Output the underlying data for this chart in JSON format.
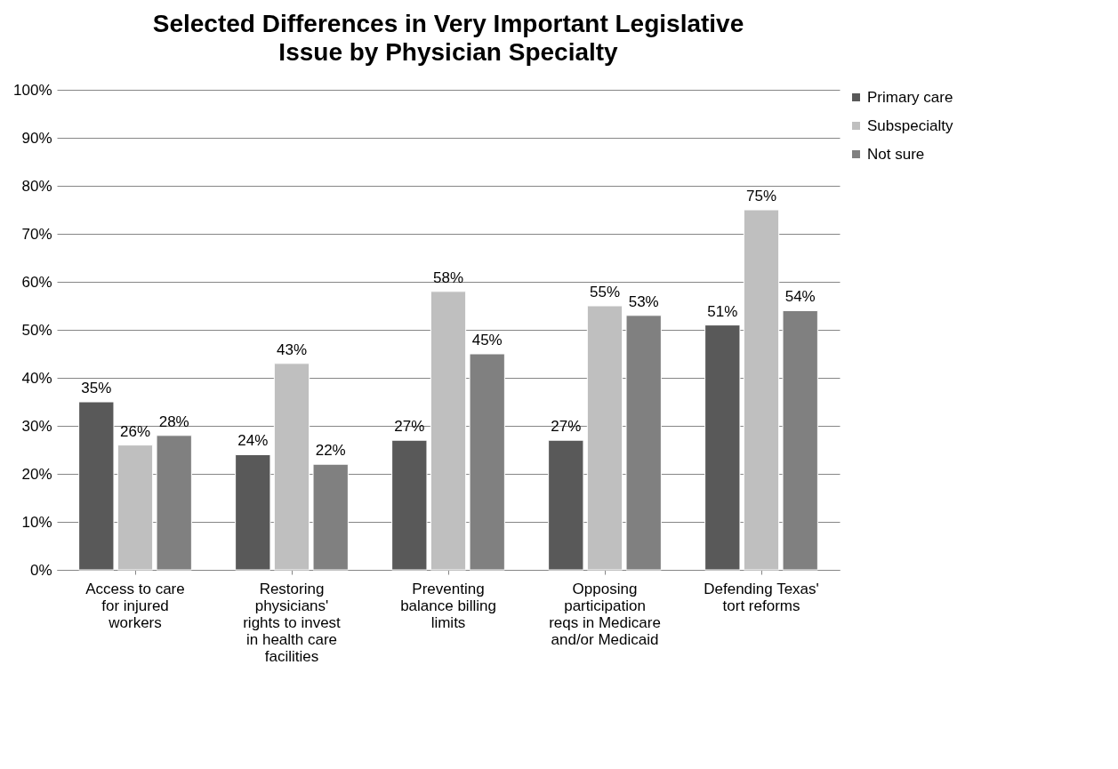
{
  "chart_data": {
    "type": "bar",
    "title": "Selected Differences in Very Important Legislative Issue by Physician Specialty",
    "categories": [
      "Access to care for injured workers",
      "Restoring physicians' rights to invest in health care facilities",
      "Preventing balance billing limits",
      "Opposing participation reqs in Medicare and/or Medicaid",
      "Defending Texas' tort reforms"
    ],
    "series": [
      {
        "name": "Primary care",
        "color": "#595959",
        "values": [
          35,
          24,
          27,
          27,
          51
        ],
        "value_labels": [
          "35%",
          "24%",
          "27%",
          "27%",
          "51%"
        ]
      },
      {
        "name": "Subspecialty",
        "color": "#bfbfbf",
        "values": [
          26,
          43,
          58,
          55,
          75
        ],
        "value_labels": [
          "26%",
          "43%",
          "58%",
          "55%",
          "75%"
        ]
      },
      {
        "name": "Not sure",
        "color": "#808080",
        "values": [
          28,
          22,
          45,
          53,
          54
        ],
        "value_labels": [
          "28%",
          "22%",
          "45%",
          "53%",
          "54%"
        ]
      }
    ],
    "ylim": [
      0,
      100
    ],
    "yticks": [
      {
        "value": 0,
        "label": "0%"
      },
      {
        "value": 10,
        "label": "10%"
      },
      {
        "value": 20,
        "label": "20%"
      },
      {
        "value": 30,
        "label": "30%"
      },
      {
        "value": 40,
        "label": "40%"
      },
      {
        "value": 50,
        "label": "50%"
      },
      {
        "value": 60,
        "label": "60%"
      },
      {
        "value": 70,
        "label": "70%"
      },
      {
        "value": 80,
        "label": "80%"
      },
      {
        "value": 90,
        "label": "90%"
      },
      {
        "value": 100,
        "label": "100%"
      }
    ],
    "grid": "y",
    "legend": "right"
  }
}
